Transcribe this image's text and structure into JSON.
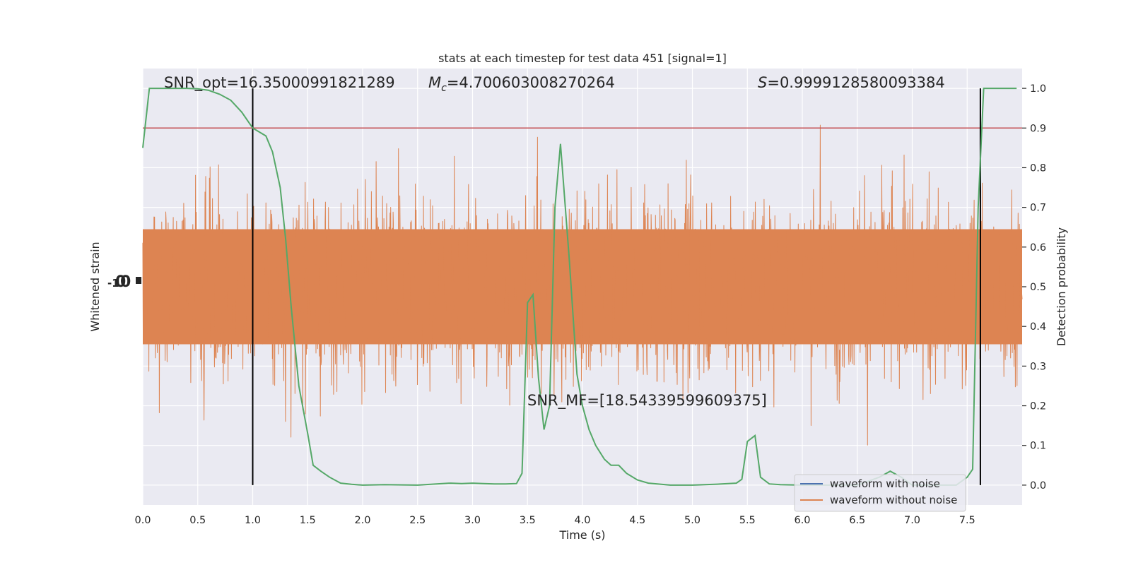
{
  "chart_data": {
    "type": "line",
    "title": "stats at each timestep for test data 451 [signal=1]",
    "xlabel": "Time (s)",
    "ylabel_left": "Whitened strain",
    "ylabel_right": "Detection probability",
    "xlim": [
      0,
      8
    ],
    "ylim_right": [
      -0.05,
      1.05
    ],
    "xticks": [
      "0.0",
      "0.5",
      "1.0",
      "1.5",
      "2.0",
      "2.5",
      "3.0",
      "3.5",
      "4.0",
      "4.5",
      "5.0",
      "5.5",
      "6.0",
      "6.5",
      "7.0",
      "7.5"
    ],
    "yticks_right": [
      "0.0",
      "0.1",
      "0.2",
      "0.3",
      "0.4",
      "0.5",
      "0.6",
      "0.7",
      "0.8",
      "0.9",
      "1.0"
    ],
    "grid": true,
    "legend_position": "lower-right",
    "background_color": "#eaeaf2",
    "colors": {
      "waveform_with_noise": "#4c72b0",
      "waveform_without_noise": "#dd8452",
      "detection_probability": "#55a868",
      "threshold": "#c44e52",
      "markers": "#000000"
    },
    "series": [
      {
        "name": "waveform with noise",
        "color": "#4c72b0",
        "values": []
      },
      {
        "name": "waveform without noise",
        "color": "#dd8452",
        "values": []
      },
      {
        "color": "#55a868",
        "x": [
          0.0,
          0.06,
          0.12,
          0.2,
          0.3,
          0.4,
          0.5,
          0.6,
          0.7,
          0.8,
          0.9,
          0.95,
          1.0,
          1.06,
          1.12,
          1.18,
          1.25,
          1.3,
          1.35,
          1.42,
          1.5,
          1.55,
          1.62,
          1.7,
          1.8,
          1.9,
          2.0,
          2.2,
          2.5,
          2.8,
          2.9,
          3.0,
          3.1,
          3.2,
          3.3,
          3.4,
          3.45,
          3.5,
          3.55,
          3.6,
          3.65,
          3.7,
          3.75,
          3.8,
          3.88,
          3.95,
          4.0,
          4.06,
          4.12,
          4.2,
          4.26,
          4.33,
          4.4,
          4.5,
          4.6,
          4.8,
          5.0,
          5.2,
          5.4,
          5.45,
          5.5,
          5.57,
          5.62,
          5.7,
          5.8,
          6.0,
          6.5,
          6.7,
          6.8,
          6.9,
          7.0,
          7.2,
          7.4,
          7.5,
          7.55,
          7.6,
          7.65,
          7.72,
          7.8,
          7.95
        ],
        "values": [
          0.85,
          1.0,
          1.0,
          1.0,
          1.0,
          1.0,
          0.999,
          0.995,
          0.985,
          0.97,
          0.94,
          0.92,
          0.9,
          0.89,
          0.88,
          0.84,
          0.75,
          0.62,
          0.45,
          0.25,
          0.13,
          0.05,
          0.035,
          0.02,
          0.005,
          0.002,
          0.0,
          0.001,
          0.0,
          0.005,
          0.004,
          0.005,
          0.004,
          0.003,
          0.003,
          0.004,
          0.03,
          0.46,
          0.48,
          0.27,
          0.14,
          0.2,
          0.7,
          0.86,
          0.57,
          0.28,
          0.2,
          0.14,
          0.1,
          0.065,
          0.05,
          0.05,
          0.03,
          0.013,
          0.005,
          0.0,
          0.0,
          0.002,
          0.005,
          0.015,
          0.11,
          0.125,
          0.02,
          0.003,
          0.001,
          0.0,
          0.0,
          0.02,
          0.035,
          0.02,
          0.0,
          0.0,
          0.0,
          0.02,
          0.04,
          0.7,
          1.0,
          1.0,
          1.0,
          1.0
        ]
      }
    ],
    "threshold": 0.9,
    "vertical_lines_x": [
      1.0,
      7.62
    ],
    "annotations": {
      "snr_opt": "SNR_opt=16.35000991821289",
      "mc_symbol": "M",
      "mc_sub": "c",
      "mc_value": "=4.700603008270264",
      "s_symbol": "S",
      "s_value": "=0.9999128580093384",
      "snr_mf": "SNR_MF=[18.54339599609375]"
    }
  }
}
